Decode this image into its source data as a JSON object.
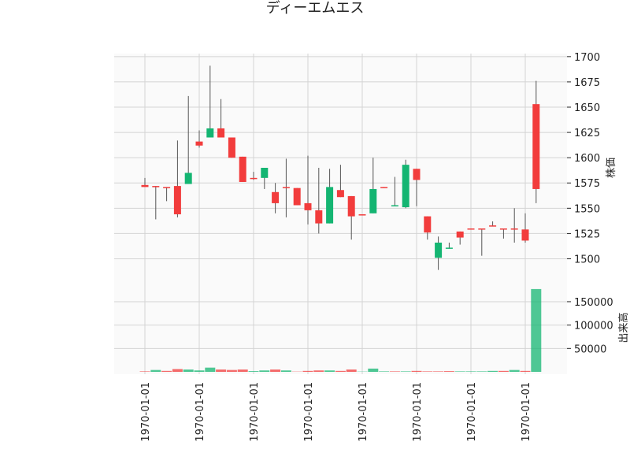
{
  "chart_data": {
    "type": "candlestick",
    "title": "ディーエムエス",
    "ylabel": "株価",
    "volume_label": "出来高",
    "categories": [
      "1970-01-01",
      null,
      null,
      null,
      null,
      "1970-01-01",
      null,
      null,
      null,
      null,
      "1970-01-01",
      null,
      null,
      null,
      null,
      "1970-01-01",
      null,
      null,
      null,
      null,
      "1970-01-01",
      null,
      null,
      null,
      null,
      "1970-01-01",
      null,
      null,
      null,
      null,
      "1970-01-01",
      null,
      null,
      null,
      null,
      "1970-01-01",
      null
    ],
    "open": [
      1573,
      1572,
      1571,
      1572,
      1574,
      1616,
      1620,
      1629,
      1620,
      1601,
      1580,
      1580,
      1566,
      1571,
      1570,
      1555,
      1548,
      1535,
      1568,
      1562,
      1544,
      1545,
      1571,
      1552,
      1551,
      1589,
      1542,
      1501,
      1510,
      1527,
      1530,
      1530,
      1533,
      1530,
      1530,
      1529,
      1653
    ],
    "high": [
      1580,
      1572,
      1571,
      1617,
      1661,
      1627,
      1691,
      1658,
      1620,
      1601,
      1586,
      1590,
      1575,
      1599,
      1570,
      1602,
      1590,
      1589,
      1593,
      1562,
      1544,
      1600,
      1571,
      1581,
      1598,
      1589,
      1542,
      1522,
      1516,
      1527,
      1530,
      1530,
      1537,
      1530,
      1550,
      1545,
      1676
    ],
    "low": [
      1571,
      1539,
      1557,
      1541,
      1574,
      1610,
      1620,
      1620,
      1600,
      1576,
      1578,
      1569,
      1545,
      1541,
      1553,
      1534,
      1525,
      1535,
      1561,
      1519,
      1543,
      1545,
      1570,
      1552,
      1550,
      1552,
      1519,
      1489,
      1510,
      1514,
      1529,
      1503,
      1532,
      1520,
      1516,
      1516,
      1555
    ],
    "close": [
      1571,
      1571,
      1570,
      1544,
      1585,
      1612,
      1629,
      1620,
      1600,
      1576,
      1579,
      1590,
      1555,
      1570,
      1553,
      1548,
      1535,
      1571,
      1561,
      1542,
      1543,
      1569,
      1570,
      1553,
      1593,
      1578,
      1526,
      1516,
      1511,
      1521,
      1529,
      1529,
      1532,
      1529,
      1529,
      1518,
      1569
    ],
    "volume": [
      1000,
      4000,
      2000,
      6000,
      5000,
      3000,
      9000,
      5000,
      4000,
      5000,
      1500,
      3000,
      5000,
      3000,
      500,
      2000,
      3000,
      3000,
      2000,
      5000,
      500,
      7000,
      1000,
      1000,
      1000,
      2000,
      1000,
      1000,
      1500,
      1000,
      1000,
      1000,
      2000,
      2000,
      4000,
      2000,
      177000
    ],
    "up_color": "#14b572",
    "down_color": "#f23c3c",
    "ylim": [
      1477,
      1703
    ],
    "yticks": [
      1500,
      1525,
      1550,
      1575,
      1600,
      1625,
      1650,
      1675,
      1700
    ],
    "volume_ylim": [
      0,
      192000
    ],
    "volume_yticks": [
      50000,
      100000,
      150000
    ],
    "grid": true
  }
}
